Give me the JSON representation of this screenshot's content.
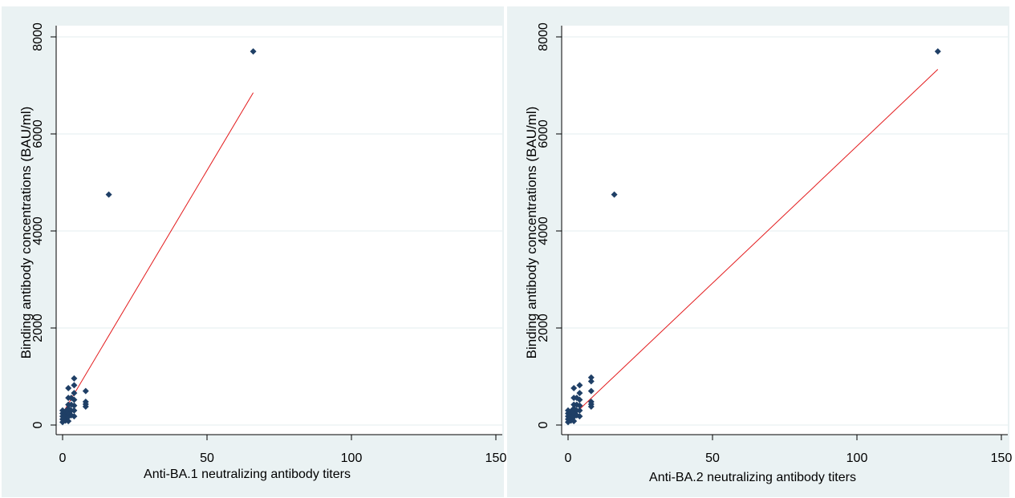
{
  "chart_data": [
    {
      "type": "scatter",
      "title": "",
      "xlabel": "Anti-BA.1 neutralizing antibody titers",
      "ylabel": "Binding antibody concentrations (BAU/ml)",
      "xlim": [
        0,
        150
      ],
      "ylim": [
        0,
        8000
      ],
      "xticks": [
        0,
        50,
        100,
        150
      ],
      "yticks": [
        0,
        2000,
        4000,
        6000,
        8000
      ],
      "grid": true,
      "marker_color": "#1f3f66",
      "fit_color": "#e31a1c",
      "series": [
        {
          "type": "scatter",
          "points": [
            [
              0,
              60
            ],
            [
              0,
              120
            ],
            [
              0,
              180
            ],
            [
              0,
              240
            ],
            [
              0,
              300
            ],
            [
              1,
              90
            ],
            [
              1,
              150
            ],
            [
              1,
              210
            ],
            [
              1,
              280
            ],
            [
              2,
              80
            ],
            [
              2,
              170
            ],
            [
              2,
              260
            ],
            [
              2,
              340
            ],
            [
              2,
              420
            ],
            [
              2,
              560
            ],
            [
              2,
              760
            ],
            [
              3,
              200
            ],
            [
              3,
              300
            ],
            [
              3,
              420
            ],
            [
              3,
              560
            ],
            [
              4,
              180
            ],
            [
              4,
              300
            ],
            [
              4,
              400
            ],
            [
              4,
              520
            ],
            [
              4,
              660
            ],
            [
              4,
              820
            ],
            [
              4,
              960
            ],
            [
              8,
              380
            ],
            [
              8,
              430
            ],
            [
              8,
              480
            ],
            [
              8,
              700
            ],
            [
              16,
              4750
            ],
            [
              66,
              7700
            ]
          ]
        },
        {
          "type": "line",
          "points": [
            [
              0,
              240
            ],
            [
              66,
              6850
            ]
          ]
        }
      ]
    },
    {
      "type": "scatter",
      "title": "",
      "xlabel": "Anti-BA.2 neutralizing antibody titers",
      "ylabel": "Binding antibody concentrations (BAU/ml)",
      "xlim": [
        0,
        150
      ],
      "ylim": [
        0,
        8000
      ],
      "xticks": [
        0,
        50,
        100,
        150
      ],
      "yticks": [
        0,
        2000,
        4000,
        6000,
        8000
      ],
      "grid": true,
      "marker_color": "#1f3f66",
      "fit_color": "#e31a1c",
      "series": [
        {
          "type": "scatter",
          "points": [
            [
              0,
              60
            ],
            [
              0,
              120
            ],
            [
              0,
              180
            ],
            [
              0,
              240
            ],
            [
              0,
              300
            ],
            [
              1,
              90
            ],
            [
              1,
              150
            ],
            [
              1,
              210
            ],
            [
              1,
              280
            ],
            [
              2,
              80
            ],
            [
              2,
              170
            ],
            [
              2,
              260
            ],
            [
              2,
              340
            ],
            [
              2,
              420
            ],
            [
              2,
              560
            ],
            [
              2,
              760
            ],
            [
              3,
              200
            ],
            [
              3,
              300
            ],
            [
              3,
              420
            ],
            [
              3,
              560
            ],
            [
              4,
              180
            ],
            [
              4,
              300
            ],
            [
              4,
              400
            ],
            [
              4,
              520
            ],
            [
              4,
              660
            ],
            [
              4,
              820
            ],
            [
              8,
              380
            ],
            [
              8,
              430
            ],
            [
              8,
              480
            ],
            [
              8,
              700
            ],
            [
              8,
              900
            ],
            [
              8,
              980
            ],
            [
              16,
              4750
            ],
            [
              128,
              7700
            ]
          ]
        },
        {
          "type": "line",
          "points": [
            [
              0,
              100
            ],
            [
              128,
              7330
            ]
          ]
        }
      ]
    }
  ]
}
